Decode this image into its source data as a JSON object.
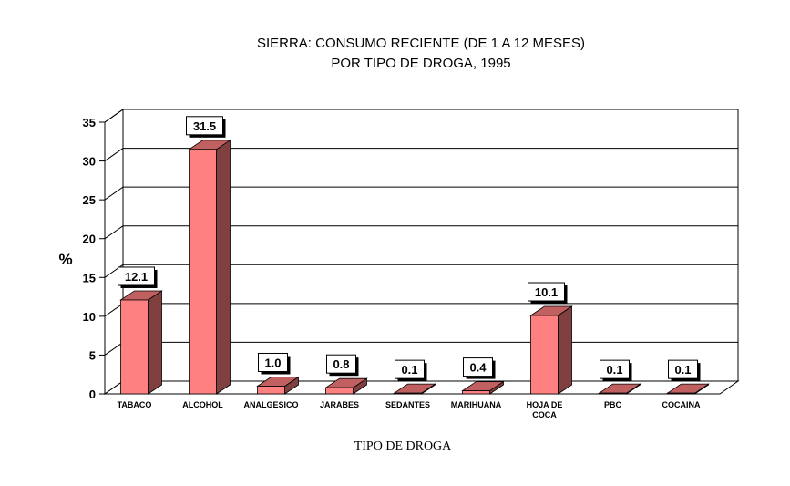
{
  "chart_data": {
    "type": "bar",
    "title": [
      "SIERRA: CONSUMO RECIENTE (DE 1 A 12 MESES)",
      "POR TIPO DE DROGA, 1995"
    ],
    "xlabel": "TIPO DE DROGA",
    "ylabel": "%",
    "ylim": [
      0,
      35
    ],
    "yticks": [
      0,
      5,
      10,
      15,
      20,
      25,
      30,
      35
    ],
    "grid": true,
    "legend": "none",
    "categories": [
      [
        "TABACO"
      ],
      [
        "ALCOHOL"
      ],
      [
        "ANALGESICO"
      ],
      [
        "JARABES"
      ],
      [
        "SEDANTES"
      ],
      [
        "MARIHUANA"
      ],
      [
        "HOJA DE",
        "COCA"
      ],
      [
        "PBC"
      ],
      [
        "COCAINA"
      ]
    ],
    "values": [
      12.1,
      31.5,
      1.0,
      0.8,
      0.1,
      0.4,
      10.1,
      0.1,
      0.1
    ],
    "data_labels": [
      "12.1",
      "31.5",
      "1.0",
      "0.8",
      "0.1",
      "0.4",
      "10.1",
      "0.1",
      "0.1"
    ],
    "colors": {
      "bar_front": "#ff8080",
      "bar_side": "#804040",
      "bar_top": "#c06060",
      "grid": "#000000"
    }
  }
}
